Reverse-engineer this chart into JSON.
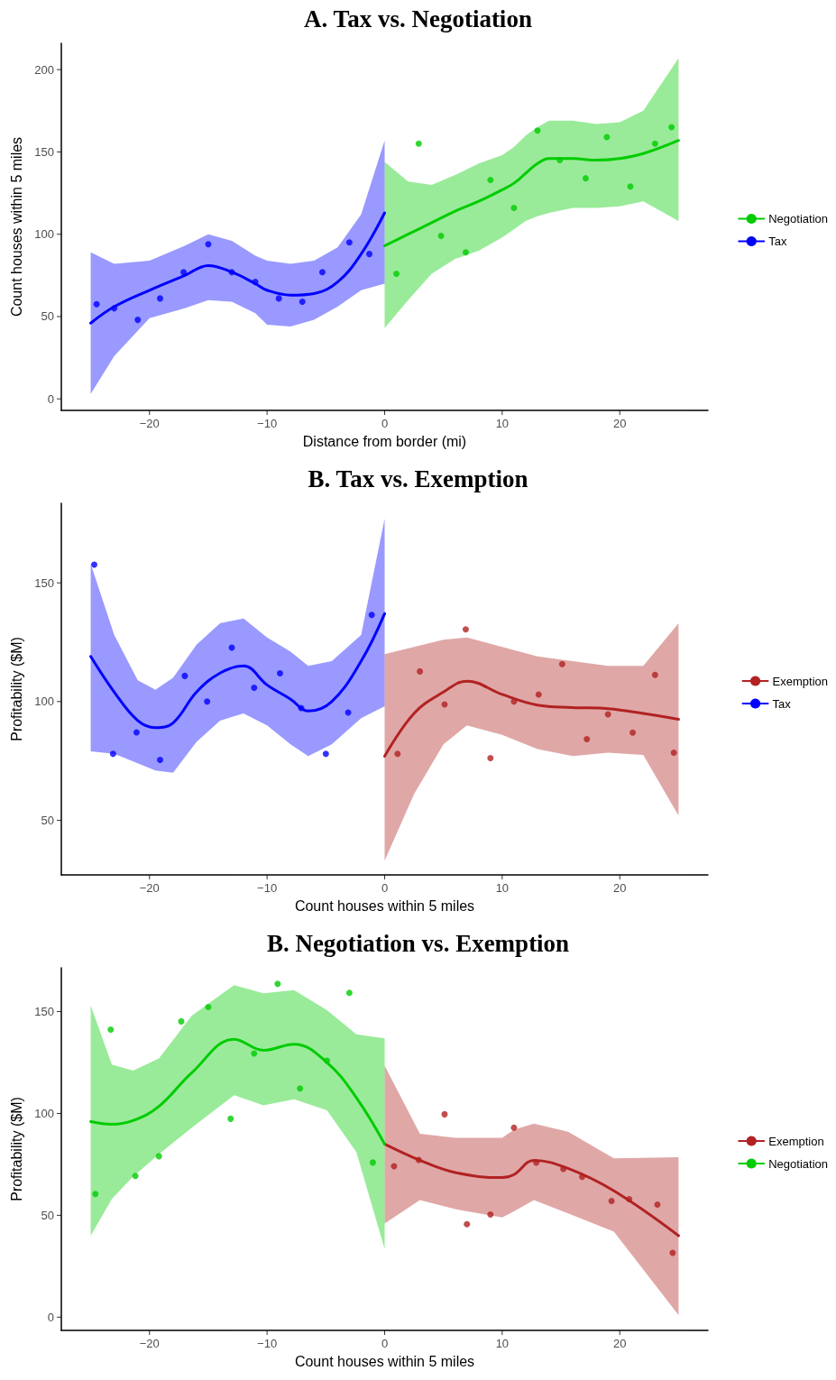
{
  "chart_data": [
    {
      "type": "line",
      "title": "A. Tax vs. Negotiation",
      "xlabel": "Distance from border (mi)",
      "ylabel": "Count houses within 5 miles",
      "xlim": [
        -27.5,
        27.5
      ],
      "xticks": [
        -20,
        -10,
        0,
        10,
        20
      ],
      "ylim": [
        -7,
        216
      ],
      "yticks": [
        0,
        50,
        100,
        150,
        200
      ],
      "legend": "right",
      "line_style": "solid",
      "series": [
        {
          "name": "Negotiation",
          "marker": "none",
          "color": "#00cc00",
          "x": [
            0,
            2,
            4,
            6,
            8,
            10,
            11,
            12,
            13,
            14,
            16,
            18,
            20,
            22,
            25
          ],
          "values": [
            93,
            100,
            107,
            114,
            120,
            127,
            131,
            137,
            143,
            146,
            146,
            145,
            146,
            149,
            157
          ],
          "lower": [
            43,
            60,
            76,
            85,
            90,
            98,
            103,
            108,
            111,
            113,
            116,
            116,
            117,
            120,
            108
          ],
          "upper": [
            144,
            132,
            130,
            136,
            143,
            148,
            153,
            160,
            165,
            169,
            169,
            167,
            168,
            175,
            207
          ]
        },
        {
          "name": "Tax",
          "marker": "none",
          "color": "#0000ff",
          "x": [
            -25,
            -23,
            -20,
            -17,
            -15,
            -13,
            -11,
            -10,
            -8,
            -6,
            -4,
            -2,
            0
          ],
          "values": [
            46,
            56,
            66,
            75,
            81,
            77,
            70,
            66,
            63,
            64,
            71,
            88,
            113
          ],
          "lower": [
            3,
            26,
            49,
            55,
            60,
            59,
            52,
            45,
            44,
            48,
            56,
            66,
            70
          ],
          "upper": [
            89,
            82,
            84,
            93,
            100,
            96,
            87,
            84,
            82,
            84,
            92,
            112,
            157
          ]
        },
        {
          "type": "scatter",
          "marker": "circle",
          "color": "#00cc00",
          "x": [
            1,
            2.9,
            4.8,
            6.9,
            9,
            11,
            13,
            14.9,
            17.1,
            18.9,
            20.9,
            23,
            24.4
          ],
          "values": [
            76,
            155,
            99,
            89,
            133,
            116,
            163,
            145,
            134,
            159,
            129,
            155,
            165
          ]
        },
        {
          "type": "scatter",
          "marker": "circle",
          "color": "#0000ff",
          "x": [
            -24.5,
            -23,
            -21,
            -19.1,
            -17.1,
            -15,
            -13,
            -11,
            -9,
            -7,
            -5.3,
            -3,
            -1.3
          ],
          "values": [
            57.5,
            55,
            48,
            61,
            77,
            94,
            77,
            71,
            61,
            59,
            77,
            95,
            88
          ]
        }
      ]
    },
    {
      "type": "line",
      "title": "B. Tax vs. Exemption",
      "xlabel": "Count houses within 5 miles",
      "ylabel": "Profitability ($M)",
      "xlim": [
        -27.5,
        27.5
      ],
      "xticks": [
        -20,
        -10,
        0,
        10,
        20
      ],
      "ylim": [
        27,
        183.5
      ],
      "yticks": [
        50,
        100,
        150
      ],
      "legend": "right",
      "line_style": "solid",
      "series": [
        {
          "name": "Exemption",
          "marker": "none",
          "color": "#b22222",
          "x": [
            0,
            2.5,
            5,
            7,
            10,
            13,
            16,
            19,
            22,
            25
          ],
          "values": [
            77,
            95,
            104,
            108.6,
            103,
            98.5,
            97.5,
            97,
            95,
            92.5
          ],
          "lower": [
            33,
            61,
            82,
            90,
            86,
            80,
            77,
            78.5,
            77.5,
            52
          ],
          "upper": [
            120,
            123,
            126,
            127,
            123,
            119,
            117,
            115,
            115,
            133
          ]
        },
        {
          "name": "Tax",
          "marker": "none",
          "color": "#0000ff",
          "x": [
            -25,
            -23,
            -21,
            -19.5,
            -18,
            -16,
            -14,
            -12,
            -10,
            -8,
            -6.5,
            -4.5,
            -2,
            0
          ],
          "values": [
            119,
            104,
            92,
            89,
            91,
            104,
            112,
            115,
            107,
            101,
            96,
            100,
            117,
            137
          ],
          "lower": [
            79,
            78,
            74,
            71,
            70,
            83,
            92,
            95,
            90,
            82,
            77,
            82,
            93,
            98
          ],
          "upper": [
            158,
            128,
            109,
            105,
            110,
            124,
            133,
            135,
            127,
            121,
            115,
            117,
            128,
            177
          ]
        },
        {
          "type": "scatter",
          "marker": "circle",
          "color": "#b22222",
          "x": [
            1.1,
            3,
            5.1,
            6.9,
            9,
            11,
            13.1,
            15.1,
            17.2,
            19,
            21.1,
            23,
            24.6
          ],
          "values": [
            78,
            112.7,
            98.8,
            130.4,
            76.2,
            100,
            103,
            115.8,
            84.2,
            94.6,
            86.9,
            111.2,
            78.5
          ]
        },
        {
          "type": "scatter",
          "marker": "circle",
          "color": "#0000ff",
          "x": [
            -24.7,
            -23.1,
            -21.1,
            -19.1,
            -17,
            -15.1,
            -13,
            -11.1,
            -8.9,
            -7.1,
            -5,
            -3.1,
            -1.1
          ],
          "values": [
            157.7,
            78,
            87,
            75.4,
            110.8,
            100,
            122.7,
            105.8,
            111.9,
            97.3,
            78,
            95.4,
            136.5
          ]
        }
      ]
    },
    {
      "type": "line",
      "title": "B. Negotiation vs. Exemption",
      "xlabel": "Count houses within 5 miles",
      "ylabel": "Profitability ($M)",
      "xlim": [
        -27.5,
        27.5
      ],
      "xticks": [
        -20,
        -10,
        0,
        10,
        20
      ],
      "ylim": [
        -6.5,
        171.5
      ],
      "yticks": [
        0,
        50,
        100,
        150
      ],
      "legend": "right",
      "line_style": "solid",
      "series": [
        {
          "name": "Exemption",
          "marker": "none",
          "color": "#b22222",
          "x": [
            0,
            3,
            6,
            10,
            11,
            12.7,
            15.6,
            19.5,
            25
          ],
          "values": [
            85,
            77,
            71,
            68.5,
            70,
            77,
            73,
            62,
            40
          ],
          "lower": [
            46,
            57.5,
            53,
            49,
            52,
            57.5,
            51,
            42,
            1
          ],
          "upper": [
            123.5,
            90,
            88,
            88,
            92,
            95,
            91,
            78,
            78.5
          ]
        },
        {
          "name": "Negotiation",
          "marker": "none",
          "color": "#00cc00",
          "x": [
            -25,
            -23.2,
            -21.4,
            -19.2,
            -16.4,
            -12.8,
            -10.3,
            -7.7,
            -4.9,
            -2.4,
            0
          ],
          "values": [
            96,
            94.7,
            96.5,
            103.5,
            120,
            136.4,
            131,
            134,
            125,
            107.7,
            85
          ],
          "lower": [
            40,
            58,
            69,
            80,
            93,
            109,
            104,
            107,
            101.5,
            81,
            33.5
          ],
          "upper": [
            153,
            124,
            121,
            127,
            148,
            163,
            159,
            160.5,
            150.7,
            138.8,
            136.8
          ]
        },
        {
          "type": "scatter",
          "marker": "circle",
          "color": "#b22222",
          "x": [
            0.8,
            2.9,
            5.1,
            7,
            9,
            11,
            12.9,
            15.2,
            16.8,
            19.3,
            20.8,
            23.2,
            24.5
          ],
          "values": [
            74.1,
            77.2,
            99.6,
            45.6,
            50.4,
            93,
            75.9,
            72.8,
            68.9,
            57,
            57.9,
            55.3,
            31.6
          ]
        },
        {
          "type": "scatter",
          "marker": "circle",
          "color": "#00cc00",
          "x": [
            -24.6,
            -23.3,
            -21.2,
            -19.2,
            -17.3,
            -15,
            -13.1,
            -11.1,
            -9.1,
            -7.2,
            -4.9,
            -3,
            -1
          ],
          "values": [
            60.5,
            141.2,
            69.3,
            79,
            145.2,
            152.2,
            97.4,
            129.4,
            163.6,
            112.3,
            125.9,
            159.2,
            75.9
          ]
        }
      ]
    }
  ]
}
